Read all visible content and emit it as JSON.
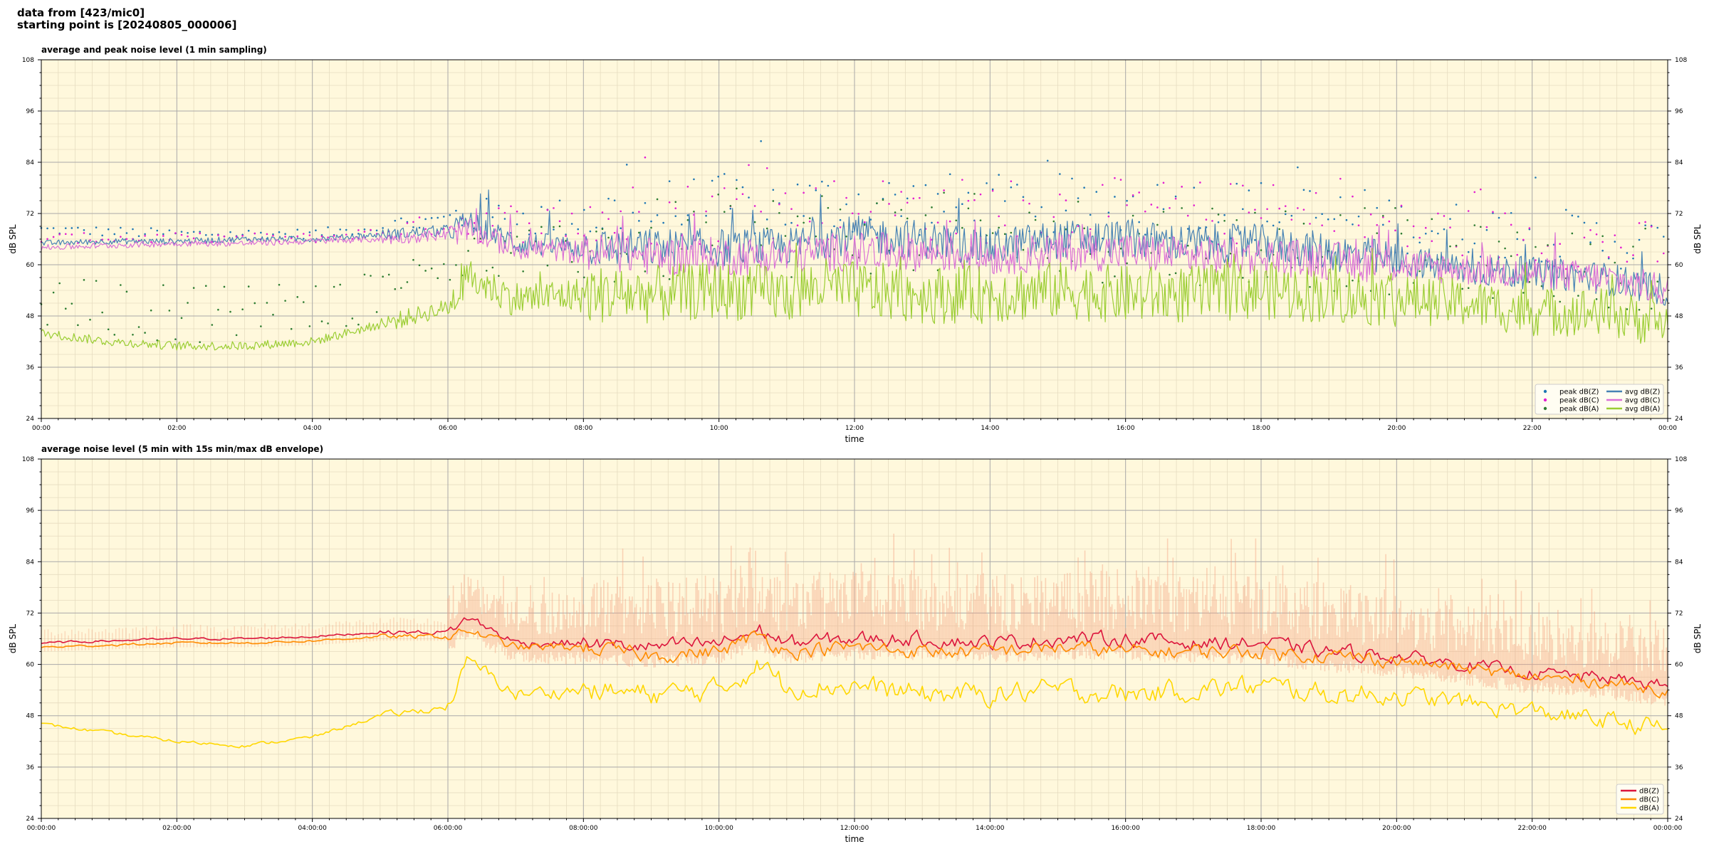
{
  "header": {
    "line1": "data from [423/mic0]",
    "line2": "starting point is [20240805_000006]"
  },
  "colors": {
    "plot_bg": "#fff8dc",
    "peak_z": "#1f77b4",
    "peak_c": "#e31dd0",
    "peak_a": "#2e7d32",
    "avg_z": "#4682b4",
    "avg_c": "#da70d6",
    "avg_a": "#9acd32",
    "env_z": "#dc143c",
    "env_c": "#ff8c00",
    "env_a": "#ffd700",
    "envelope_fill": "#f4a582"
  },
  "chart_data": [
    {
      "type": "line",
      "title": "average and peak noise level (1 min sampling)",
      "xlabel": "time",
      "ylabel": "dB SPL",
      "ylim": [
        24,
        108
      ],
      "xlim_hours": [
        0,
        24
      ],
      "x_ticks": [
        "00:00",
        "02:00",
        "04:00",
        "06:00",
        "08:00",
        "10:00",
        "12:00",
        "14:00",
        "16:00",
        "18:00",
        "20:00",
        "22:00",
        "00:00"
      ],
      "y_ticks": [
        24,
        36,
        48,
        60,
        72,
        84,
        96,
        108
      ],
      "grid": true,
      "legend_position": "lower-right",
      "legend": [
        {
          "label": "peak dB(Z)",
          "kind": "dot",
          "color_key": "peak_z"
        },
        {
          "label": "peak dB(C)",
          "kind": "dot",
          "color_key": "peak_c"
        },
        {
          "label": "peak dB(A)",
          "kind": "dot",
          "color_key": "peak_a"
        },
        {
          "label": "avg dB(Z)",
          "kind": "line",
          "color_key": "avg_z"
        },
        {
          "label": "avg dB(C)",
          "kind": "line",
          "color_key": "avg_c"
        },
        {
          "label": "avg dB(A)",
          "kind": "line",
          "color_key": "avg_a"
        }
      ],
      "series": [
        {
          "name": "avg dB(Z)",
          "x_hours": [
            0,
            1,
            2,
            3,
            4,
            5,
            6,
            6.3,
            7,
            8,
            9,
            10,
            11,
            11.5,
            12,
            13,
            14,
            15,
            16,
            17,
            18,
            19,
            20,
            21,
            22,
            23,
            24
          ],
          "values": [
            65,
            65.5,
            65.5,
            66,
            66,
            67,
            68,
            70,
            65,
            64,
            64,
            64,
            64,
            66,
            67,
            66,
            64,
            66,
            66,
            65,
            65,
            63,
            61,
            59,
            58,
            57,
            54
          ]
        },
        {
          "name": "avg dB(C)",
          "x_hours": [
            0,
            1,
            2,
            3,
            4,
            5,
            6,
            6.3,
            7,
            8,
            9,
            10,
            11,
            11.5,
            12,
            13,
            14,
            15,
            16,
            17,
            18,
            19,
            20,
            21,
            22,
            23,
            24
          ],
          "values": [
            64,
            64.5,
            65,
            65,
            65.5,
            66,
            67,
            68,
            64,
            63,
            62,
            62,
            62,
            63,
            63,
            63,
            62,
            63,
            63,
            62,
            62,
            61,
            60,
            59,
            58,
            57,
            54
          ]
        },
        {
          "name": "avg dB(A)",
          "x_hours": [
            0,
            1,
            2,
            3,
            4,
            5,
            6,
            6.3,
            7,
            8,
            9,
            10,
            11,
            11.5,
            12,
            13,
            14,
            15,
            16,
            17,
            18,
            19,
            20,
            21,
            22,
            23,
            24
          ],
          "values": [
            44,
            42,
            41,
            41,
            42,
            46,
            50,
            57,
            52,
            53,
            53,
            54,
            53,
            55,
            54,
            53,
            53,
            54,
            53,
            53,
            54,
            53,
            52,
            51,
            49,
            49,
            46
          ]
        },
        {
          "name": "peak dB(Z)",
          "x_hours": [
            0,
            2,
            4,
            6,
            8,
            10,
            12,
            14,
            16,
            18,
            20,
            22,
            24
          ],
          "values": [
            68,
            67,
            67,
            70,
            70,
            72,
            73,
            72,
            72,
            71,
            68,
            66,
            63
          ]
        },
        {
          "name": "peak dB(C)",
          "x_hours": [
            0,
            2,
            4,
            6,
            8,
            10,
            12,
            14,
            16,
            18,
            20,
            22,
            24
          ],
          "values": [
            66,
            66,
            66,
            69,
            69,
            71,
            72,
            71,
            71,
            70,
            67,
            65,
            62
          ]
        },
        {
          "name": "peak dB(A)",
          "x_hours": [
            0,
            2,
            4,
            6,
            8,
            10,
            12,
            14,
            16,
            18,
            20,
            22,
            24
          ],
          "values": [
            52,
            50,
            51,
            60,
            62,
            64,
            66,
            64,
            64,
            63,
            61,
            58,
            56
          ]
        }
      ]
    },
    {
      "type": "line",
      "title": "average noise level (5 min with 15s min/max dB envelope)",
      "xlabel": "time",
      "ylabel": "dB SPL",
      "ylim": [
        24,
        108
      ],
      "xlim_hours": [
        0,
        24
      ],
      "x_ticks": [
        "00:00:00",
        "02:00:00",
        "04:00:00",
        "06:00:00",
        "08:00:00",
        "10:00:00",
        "12:00:00",
        "14:00:00",
        "16:00:00",
        "18:00:00",
        "20:00:00",
        "22:00:00",
        "00:00:00"
      ],
      "y_ticks": [
        24,
        36,
        48,
        60,
        72,
        84,
        96,
        108
      ],
      "grid": true,
      "legend_position": "lower-right",
      "legend": [
        {
          "label": "dB(Z)",
          "kind": "line",
          "color_key": "env_z"
        },
        {
          "label": "dB(C)",
          "kind": "line",
          "color_key": "env_c"
        },
        {
          "label": "dB(A)",
          "kind": "line",
          "color_key": "env_a"
        }
      ],
      "series": [
        {
          "name": "dB(Z)",
          "x_hours": [
            0,
            1,
            2,
            3,
            4,
            5,
            6,
            6.3,
            7,
            8,
            9,
            10,
            10.6,
            11,
            12,
            13,
            14,
            15,
            16,
            17,
            18,
            19,
            20,
            21,
            22,
            23,
            24
          ],
          "values": [
            65,
            65.5,
            66,
            66,
            66.5,
            67.5,
            67.5,
            71,
            65,
            65,
            64,
            65,
            68,
            65,
            66,
            66,
            65,
            66,
            66,
            65,
            65,
            63,
            62,
            60,
            58,
            57,
            55
          ]
        },
        {
          "name": "dB(C)",
          "x_hours": [
            0,
            1,
            2,
            3,
            4,
            5,
            6,
            6.3,
            7,
            8,
            9,
            10,
            10.6,
            11,
            12,
            13,
            14,
            15,
            16,
            17,
            18,
            19,
            20,
            21,
            22,
            23,
            24
          ],
          "values": [
            64,
            64.5,
            65,
            65,
            65.5,
            66.5,
            66.5,
            68,
            64,
            64,
            62,
            63,
            67,
            63,
            64,
            63,
            63,
            64,
            63,
            63,
            63,
            62,
            61,
            59,
            57,
            56,
            54
          ]
        },
        {
          "name": "dB(A)",
          "x_hours": [
            0,
            1,
            2,
            3,
            4,
            5,
            6,
            6.3,
            7,
            8,
            9,
            10,
            10.6,
            11,
            12,
            13,
            14,
            15,
            16,
            17,
            18,
            19,
            20,
            21,
            22,
            23,
            24
          ],
          "values": [
            46,
            44,
            42,
            41,
            43,
            48,
            50,
            61,
            53,
            54,
            53,
            54,
            60,
            55,
            55,
            53,
            53,
            54,
            53,
            54,
            55,
            53,
            53,
            51,
            49,
            47,
            45
          ]
        }
      ]
    }
  ]
}
